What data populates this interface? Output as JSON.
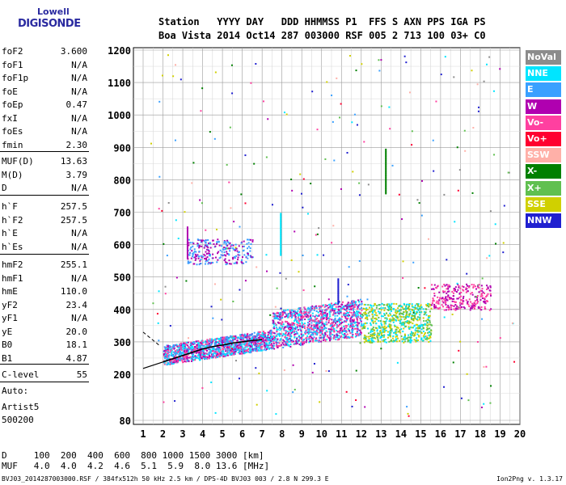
{
  "logo": {
    "top": "Lowell",
    "main": "DIGISONDE"
  },
  "header": {
    "labels": "Station   YYYY DAY   DDD HHMMSS P1  FFS S AXN PPS IGA PS",
    "values": "Boa Vista 2014 Oct14 287 003000 RSF 005 2 713 100 03+ C0"
  },
  "parameters": {
    "group1": [
      {
        "name": "foF2",
        "value": "3.600"
      },
      {
        "name": "foF1",
        "value": "N/A"
      },
      {
        "name": "foF1p",
        "value": "N/A"
      },
      {
        "name": "foE",
        "value": "N/A"
      },
      {
        "name": "foEp",
        "value": "0.47"
      },
      {
        "name": "fxI",
        "value": "N/A"
      },
      {
        "name": "foEs",
        "value": "N/A"
      },
      {
        "name": "fmin",
        "value": "2.30"
      }
    ],
    "group2": [
      {
        "name": "MUF(D)",
        "value": "13.63"
      },
      {
        "name": "M(D)",
        "value": "3.79"
      },
      {
        "name": "D",
        "value": "N/A"
      }
    ],
    "group3": [
      {
        "name": "h`F",
        "value": "257.5"
      },
      {
        "name": "h`F2",
        "value": "257.5"
      },
      {
        "name": "h`E",
        "value": "N/A"
      },
      {
        "name": "h`Es",
        "value": "N/A"
      }
    ],
    "group4": [
      {
        "name": "hmF2",
        "value": "255.1"
      },
      {
        "name": "hmF1",
        "value": "N/A"
      },
      {
        "name": "hmE",
        "value": "110.0"
      },
      {
        "name": "yF2",
        "value": "23.4"
      },
      {
        "name": "yF1",
        "value": "N/A"
      },
      {
        "name": "yE",
        "value": "20.0"
      },
      {
        "name": "B0",
        "value": "18.1"
      },
      {
        "name": "B1",
        "value": "4.87"
      }
    ],
    "clevel": {
      "name": "C-level",
      "value": "55"
    }
  },
  "autoscaling": {
    "line1": "Auto:",
    "line2": "Artist5",
    "line3": "500200"
  },
  "legend": [
    {
      "label": "NoVal",
      "color": "#8c8c8c"
    },
    {
      "label": "NNE",
      "color": "#00e5ff"
    },
    {
      "label": "E",
      "color": "#3aa0ff"
    },
    {
      "label": "W",
      "color": "#b000b0"
    },
    {
      "label": "Vo-",
      "color": "#ff40a0"
    },
    {
      "label": "Vo+",
      "color": "#ff0030"
    },
    {
      "label": "SSW",
      "color": "#ffb0a8"
    },
    {
      "label": "X-",
      "color": "#008000"
    },
    {
      "label": "X+",
      "color": "#60c050"
    },
    {
      "label": "SSE",
      "color": "#d0d000"
    },
    {
      "label": "NNW",
      "color": "#2020d0"
    }
  ],
  "dtable": {
    "row1": "D     100  200  400  600  800 1000 1500 3000 [km]",
    "row2": "MUF   4.0  4.0  4.2  4.6  5.1  5.9  8.0 13.6 [MHz]"
  },
  "footer": {
    "left": "BVJ03_2014287003000.RSF / 384fx512h 50 kHz 2.5 km / DPS-4D BVJ03 003 / 2.8 N 299.3 E",
    "right": "Ion2Png v. 1.3.17"
  },
  "chart_data": {
    "type": "scatter",
    "x_ticks": [
      "1",
      "2",
      "3",
      "4",
      "5",
      "6",
      "7",
      "8",
      "9",
      "10",
      "11",
      "12",
      "13",
      "14",
      "15",
      "16",
      "17",
      "18",
      "19",
      "20"
    ],
    "y_ticks": [
      "80",
      "200",
      "300",
      "400",
      "500",
      "600",
      "700",
      "800",
      "900",
      "1000",
      "1100",
      "1200"
    ],
    "xlim": [
      1,
      20
    ],
    "ylim": [
      80,
      1200
    ],
    "grid": true,
    "legend_placement": "right",
    "trace_clusters": [
      {
        "name": "F-layer main trace",
        "x_range": [
          2.0,
          12.0
        ],
        "y_range": [
          240,
          400
        ],
        "dominant_colors": [
          "#00e5ff",
          "#3aa0ff",
          "#b000b0",
          "#ff40a0"
        ]
      },
      {
        "name": "F-layer high-frequency extension",
        "x_range": [
          12.0,
          15.5
        ],
        "y_range": [
          300,
          420
        ],
        "dominant_colors": [
          "#d0d000",
          "#00e5ff",
          "#60c050"
        ]
      },
      {
        "name": "second-hop trace",
        "x_range": [
          3.2,
          6.5
        ],
        "y_range": [
          540,
          620
        ],
        "dominant_colors": [
          "#b000b0",
          "#3aa0ff"
        ]
      },
      {
        "name": "scatter near 16-18 MHz",
        "x_range": [
          15.5,
          18.5
        ],
        "y_range": [
          400,
          480
        ],
        "dominant_colors": [
          "#ff40a0",
          "#b000b0"
        ]
      }
    ],
    "model_profile": [
      [
        2.0,
        238
      ],
      [
        2.5,
        248
      ],
      [
        3.0,
        258
      ],
      [
        3.5,
        268
      ],
      [
        4.0,
        278
      ],
      [
        4.5,
        285
      ],
      [
        5.0,
        290
      ],
      [
        5.5,
        296
      ],
      [
        6.0,
        300
      ],
      [
        6.5,
        304
      ],
      [
        7.0,
        307
      ]
    ]
  }
}
